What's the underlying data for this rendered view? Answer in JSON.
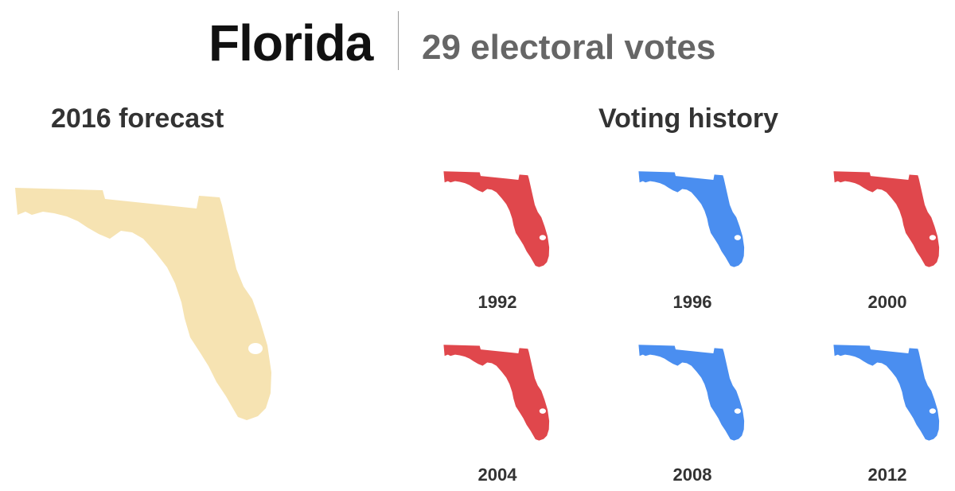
{
  "header": {
    "state": "Florida",
    "votes": "29 electoral votes"
  },
  "forecast": {
    "title": "2016 forecast",
    "color": "#f6e3b2"
  },
  "history": {
    "title": "Voting history",
    "colors": {
      "R": "#e0474c",
      "D": "#4a8ef0"
    },
    "years": [
      {
        "year": "1992",
        "party": "R"
      },
      {
        "year": "1996",
        "party": "D"
      },
      {
        "year": "2000",
        "party": "R"
      },
      {
        "year": "2004",
        "party": "R"
      },
      {
        "year": "2008",
        "party": "D"
      },
      {
        "year": "2012",
        "party": "D"
      }
    ]
  }
}
